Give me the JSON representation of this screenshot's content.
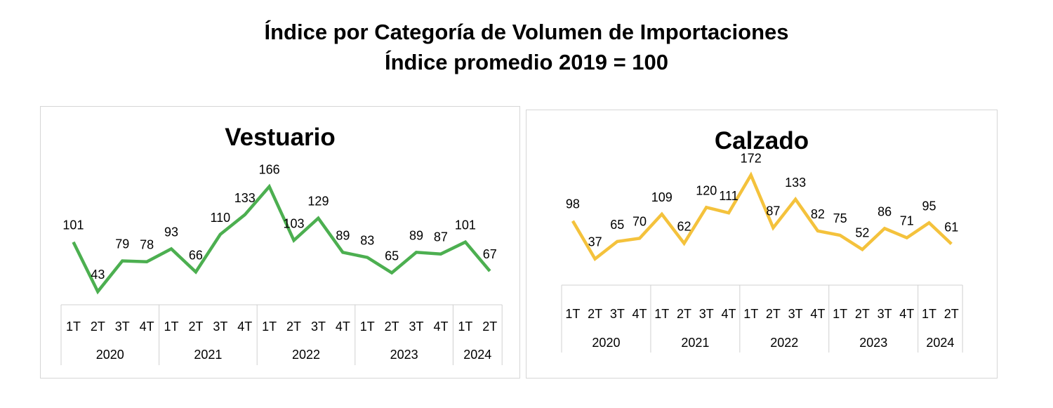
{
  "header": {
    "title_line1": "Índice por Categoría de Volumen de Importaciones",
    "title_line2": "Índice promedio 2019 = 100"
  },
  "chart_data": [
    {
      "type": "line",
      "title": "Vestuario",
      "color": "#4caf50",
      "quarters": [
        "1T",
        "2T",
        "3T",
        "4T",
        "1T",
        "2T",
        "3T",
        "4T",
        "1T",
        "2T",
        "3T",
        "4T",
        "1T",
        "2T",
        "3T",
        "4T",
        "1T",
        "2T"
      ],
      "years": [
        {
          "label": "2020",
          "count": 4
        },
        {
          "label": "2021",
          "count": 4
        },
        {
          "label": "2022",
          "count": 4
        },
        {
          "label": "2023",
          "count": 4
        },
        {
          "label": "2024",
          "count": 2
        }
      ],
      "values": [
        101,
        43,
        79,
        78,
        93,
        66,
        110,
        133,
        166,
        103,
        129,
        89,
        83,
        65,
        89,
        87,
        101,
        67
      ],
      "ylim": [
        0,
        200
      ]
    },
    {
      "type": "line",
      "title": "Calzado",
      "color": "#f4c23c",
      "quarters": [
        "1T",
        "2T",
        "3T",
        "4T",
        "1T",
        "2T",
        "3T",
        "4T",
        "1T",
        "2T",
        "3T",
        "4T",
        "1T",
        "2T",
        "3T",
        "4T",
        "1T",
        "2T"
      ],
      "years": [
        {
          "label": "2020",
          "count": 4
        },
        {
          "label": "2021",
          "count": 4
        },
        {
          "label": "2022",
          "count": 4
        },
        {
          "label": "2023",
          "count": 4
        },
        {
          "label": "2024",
          "count": 2
        }
      ],
      "values": [
        98,
        37,
        65,
        70,
        109,
        62,
        120,
        111,
        172,
        87,
        133,
        82,
        75,
        52,
        86,
        71,
        95,
        61
      ],
      "ylim": [
        0,
        200
      ]
    }
  ]
}
